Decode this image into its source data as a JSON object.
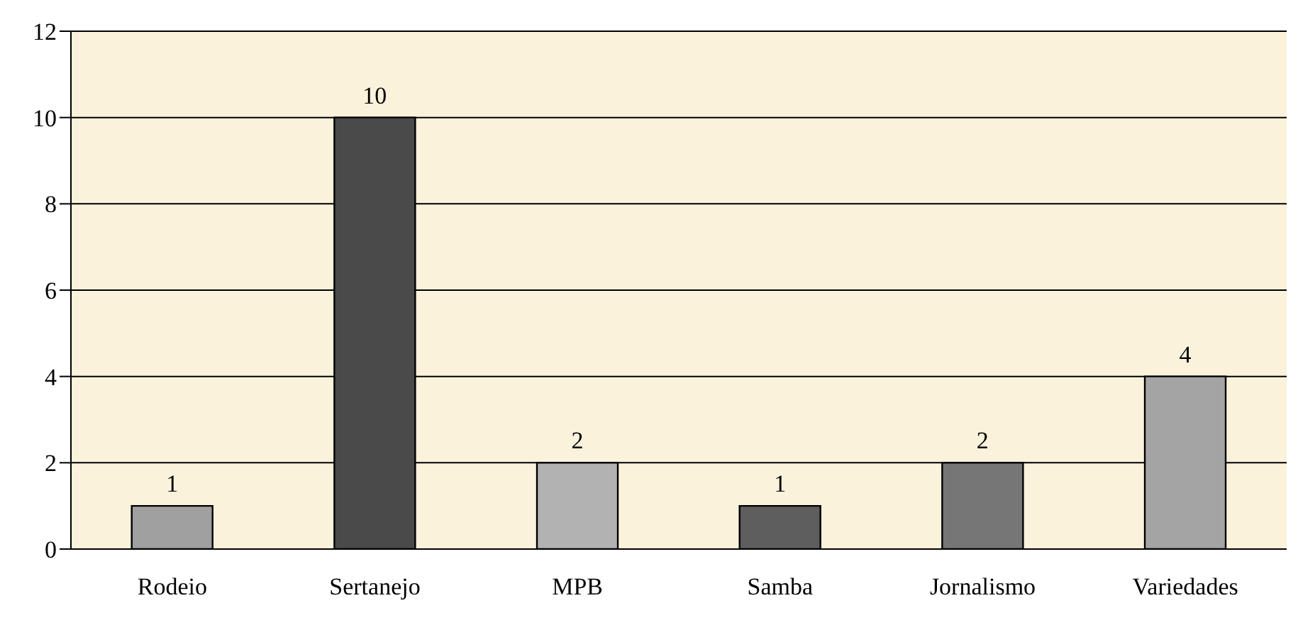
{
  "chart_data": {
    "type": "bar",
    "categories": [
      "Rodeio",
      "Sertanejo",
      "MPB",
      "Samba",
      "Jornalismo",
      "Variedades"
    ],
    "values": [
      1,
      10,
      2,
      1,
      2,
      4
    ],
    "colors": [
      "#a0a0a0",
      "#4a4a4a",
      "#b2b2b2",
      "#5e5e5e",
      "#767676",
      "#a4a4a4"
    ],
    "ylim": [
      0,
      12
    ],
    "yticks": [
      0,
      2,
      4,
      6,
      8,
      10,
      12
    ],
    "grid": "y",
    "data_labels": true
  }
}
